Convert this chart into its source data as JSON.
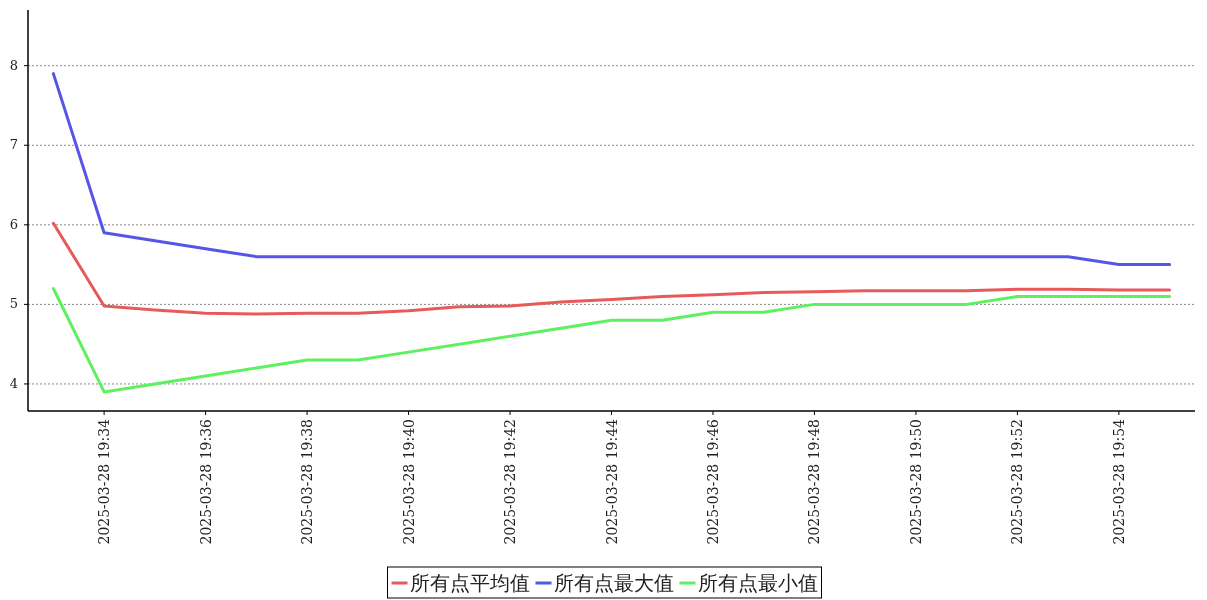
{
  "chart_data": {
    "type": "line",
    "x": [
      "2025-03-28T19:33",
      "2025-03-28T19:34",
      "2025-03-28T19:35",
      "2025-03-28T19:36",
      "2025-03-28T19:37",
      "2025-03-28T19:38",
      "2025-03-28T19:39",
      "2025-03-28T19:40",
      "2025-03-28T19:41",
      "2025-03-28T19:42",
      "2025-03-28T19:43",
      "2025-03-28T19:44",
      "2025-03-28T19:45",
      "2025-03-28T19:46",
      "2025-03-28T19:47",
      "2025-03-28T19:48",
      "2025-03-28T19:49",
      "2025-03-28T19:50",
      "2025-03-28T19:51",
      "2025-03-28T19:52",
      "2025-03-28T19:53",
      "2025-03-28T19:54",
      "2025-03-28T19:55"
    ],
    "series": [
      {
        "name": "所有点平均值",
        "color": "#e85a5a",
        "values": [
          6.02,
          4.98,
          4.93,
          4.89,
          4.88,
          4.89,
          4.89,
          4.92,
          4.97,
          4.98,
          5.03,
          5.06,
          5.1,
          5.12,
          5.15,
          5.16,
          5.17,
          5.17,
          5.17,
          5.19,
          5.19,
          5.18,
          5.18
        ]
      },
      {
        "name": "所有点最大值",
        "color": "#5555e8",
        "values": [
          7.9,
          5.9,
          5.8,
          5.7,
          5.6,
          5.6,
          5.6,
          5.6,
          5.6,
          5.6,
          5.6,
          5.6,
          5.6,
          5.6,
          5.6,
          5.6,
          5.6,
          5.6,
          5.6,
          5.6,
          5.6,
          5.5,
          5.5
        ]
      },
      {
        "name": "所有点最小值",
        "color": "#5ef05e",
        "values": [
          5.2,
          3.9,
          4.0,
          4.1,
          4.2,
          4.3,
          4.3,
          4.4,
          4.5,
          4.6,
          4.7,
          4.8,
          4.8,
          4.9,
          4.9,
          5.0,
          5.0,
          5.0,
          5.0,
          5.1,
          5.1,
          5.1,
          5.1
        ]
      }
    ],
    "xlim": [
      "2025-03-28T19:32:30",
      "2025-03-28T19:55:30"
    ],
    "xticks": [
      {
        "value": "2025-03-28T19:34",
        "label": "2025-03-28 19:34"
      },
      {
        "value": "2025-03-28T19:36",
        "label": "2025-03-28 19:36"
      },
      {
        "value": "2025-03-28T19:38",
        "label": "2025-03-28 19:38"
      },
      {
        "value": "2025-03-28T19:40",
        "label": "2025-03-28 19:40"
      },
      {
        "value": "2025-03-28T19:42",
        "label": "2025-03-28 19:42"
      },
      {
        "value": "2025-03-28T19:44",
        "label": "2025-03-28 19:44"
      },
      {
        "value": "2025-03-28T19:46",
        "label": "2025-03-28 19:46"
      },
      {
        "value": "2025-03-28T19:48",
        "label": "2025-03-28 19:48"
      },
      {
        "value": "2025-03-28T19:50",
        "label": "2025-03-28 19:50"
      },
      {
        "value": "2025-03-28T19:52",
        "label": "2025-03-28 19:52"
      },
      {
        "value": "2025-03-28T19:54",
        "label": "2025-03-28 19:54"
      }
    ],
    "ylim": [
      3.66,
      8.7
    ],
    "yticks": [
      4,
      5,
      6,
      7,
      8
    ],
    "grid": "y",
    "legend": "bottom",
    "marker": "none",
    "line_style": "solid"
  }
}
